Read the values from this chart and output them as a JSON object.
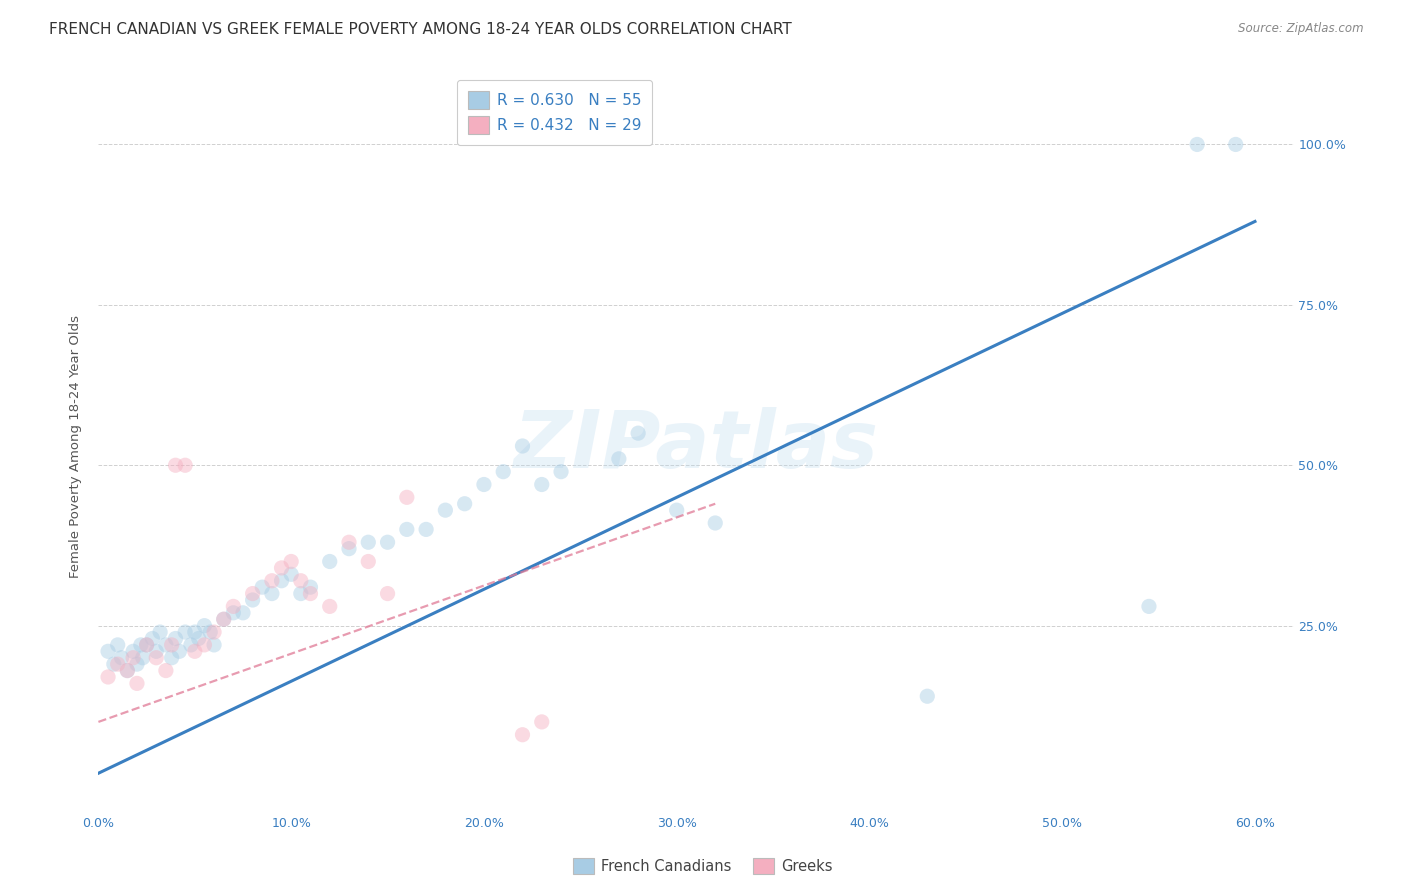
{
  "title": "FRENCH CANADIAN VS GREEK FEMALE POVERTY AMONG 18-24 YEAR OLDS CORRELATION CHART",
  "source": "Source: ZipAtlas.com",
  "ylabel": "Female Poverty Among 18-24 Year Olds",
  "xlim": [
    0.0,
    0.62
  ],
  "ylim": [
    -0.04,
    1.1
  ],
  "xtick_labels": [
    "0.0%",
    "10.0%",
    "20.0%",
    "30.0%",
    "40.0%",
    "50.0%",
    "60.0%"
  ],
  "xtick_vals": [
    0.0,
    0.1,
    0.2,
    0.3,
    0.4,
    0.5,
    0.6
  ],
  "ytick_labels": [
    "25.0%",
    "50.0%",
    "75.0%",
    "100.0%"
  ],
  "ytick_vals": [
    0.25,
    0.5,
    0.75,
    1.0
  ],
  "r_blue": 0.63,
  "n_blue": 55,
  "r_pink": 0.432,
  "n_pink": 29,
  "blue_color": "#a8cce4",
  "pink_color": "#f4afc0",
  "blue_line_color": "#3a7fc1",
  "pink_line_color": "#e07a96",
  "watermark": "ZIPatlas",
  "legend_blue_label": "French Canadians",
  "legend_pink_label": "Greeks",
  "blue_scatter_x": [
    0.005,
    0.008,
    0.01,
    0.012,
    0.015,
    0.018,
    0.02,
    0.022,
    0.023,
    0.025,
    0.028,
    0.03,
    0.032,
    0.035,
    0.038,
    0.04,
    0.042,
    0.045,
    0.048,
    0.05,
    0.052,
    0.055,
    0.058,
    0.06,
    0.065,
    0.07,
    0.075,
    0.08,
    0.085,
    0.09,
    0.095,
    0.1,
    0.105,
    0.11,
    0.12,
    0.13,
    0.14,
    0.15,
    0.16,
    0.17,
    0.18,
    0.19,
    0.2,
    0.21,
    0.22,
    0.23,
    0.24,
    0.27,
    0.3,
    0.32,
    0.28,
    0.43,
    0.545,
    0.57,
    0.59
  ],
  "blue_scatter_y": [
    0.21,
    0.19,
    0.22,
    0.2,
    0.18,
    0.21,
    0.19,
    0.22,
    0.2,
    0.22,
    0.23,
    0.21,
    0.24,
    0.22,
    0.2,
    0.23,
    0.21,
    0.24,
    0.22,
    0.24,
    0.23,
    0.25,
    0.24,
    0.22,
    0.26,
    0.27,
    0.27,
    0.29,
    0.31,
    0.3,
    0.32,
    0.33,
    0.3,
    0.31,
    0.35,
    0.37,
    0.38,
    0.38,
    0.4,
    0.4,
    0.43,
    0.44,
    0.47,
    0.49,
    0.53,
    0.47,
    0.49,
    0.51,
    0.43,
    0.41,
    0.55,
    0.14,
    0.28,
    1.0,
    1.0
  ],
  "pink_scatter_x": [
    0.005,
    0.01,
    0.015,
    0.018,
    0.02,
    0.025,
    0.03,
    0.035,
    0.038,
    0.04,
    0.045,
    0.05,
    0.055,
    0.06,
    0.065,
    0.07,
    0.08,
    0.09,
    0.095,
    0.1,
    0.105,
    0.11,
    0.12,
    0.13,
    0.14,
    0.15,
    0.16,
    0.22,
    0.23
  ],
  "pink_scatter_y": [
    0.17,
    0.19,
    0.18,
    0.2,
    0.16,
    0.22,
    0.2,
    0.18,
    0.22,
    0.5,
    0.5,
    0.21,
    0.22,
    0.24,
    0.26,
    0.28,
    0.3,
    0.32,
    0.34,
    0.35,
    0.32,
    0.3,
    0.28,
    0.38,
    0.35,
    0.3,
    0.45,
    0.08,
    0.1
  ],
  "blue_line_x": [
    0.0,
    0.6
  ],
  "blue_line_y": [
    0.02,
    0.88
  ],
  "pink_line_x": [
    0.0,
    0.32
  ],
  "pink_line_y": [
    0.1,
    0.44
  ],
  "background_color": "#ffffff",
  "grid_color": "#d0d0d0",
  "title_fontsize": 11,
  "axis_label_fontsize": 9.5,
  "tick_fontsize": 9,
  "scatter_size": 120,
  "scatter_alpha": 0.45
}
